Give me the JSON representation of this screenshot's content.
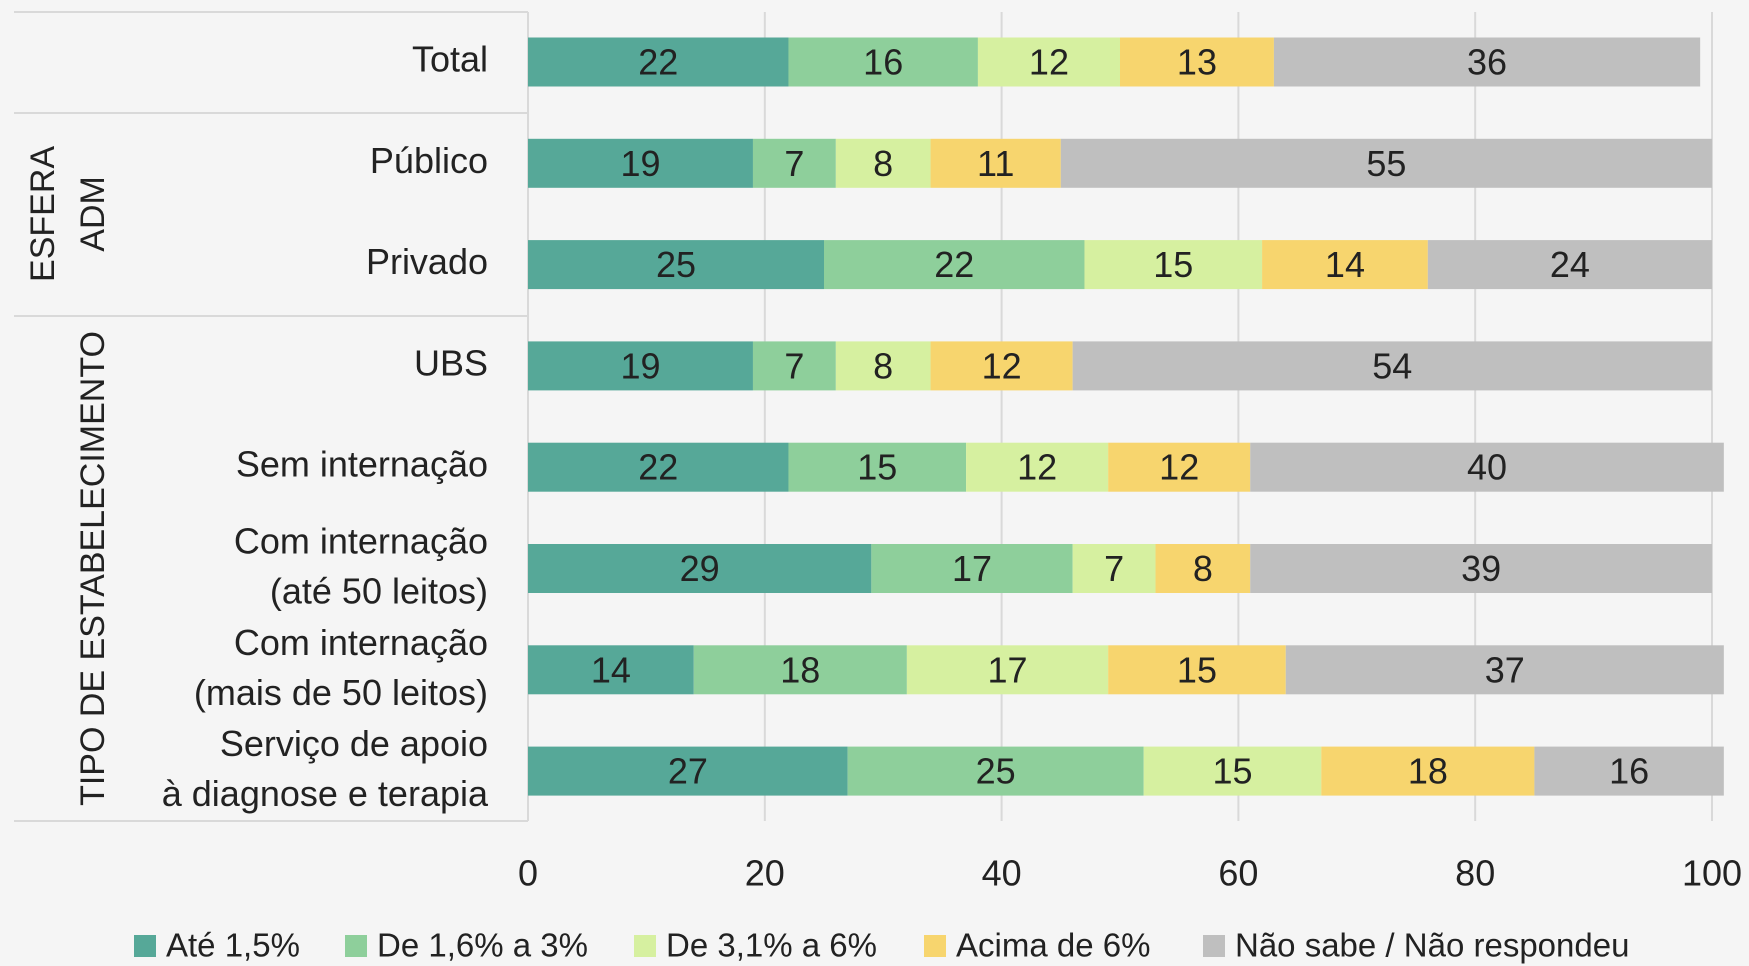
{
  "chart_data": {
    "type": "stacked_barh",
    "categories": [
      "Total",
      "Público",
      "Privado",
      "UBS",
      "Sem internação",
      "Com internação\n(até 50 leitos)",
      "Com internação\n(mais de 50 leitos)",
      "Serviço de apoio\nà diagnose e terapia"
    ],
    "groups": [
      {
        "label": "ESFERA\nADM",
        "rows": [
          1,
          2
        ]
      },
      {
        "label": "TIPO DE ESTABELECIMENTO",
        "rows": [
          3,
          7
        ]
      }
    ],
    "series": [
      {
        "name": "Até 1,5%",
        "color": "#56a898",
        "values": [
          22,
          19,
          25,
          19,
          22,
          29,
          14,
          27
        ]
      },
      {
        "name": "De 1,6% a 3%",
        "color": "#8ecf9b",
        "values": [
          16,
          7,
          22,
          7,
          15,
          17,
          18,
          25
        ]
      },
      {
        "name": "De 3,1% a 6%",
        "color": "#d6f0a0",
        "values": [
          12,
          8,
          15,
          8,
          12,
          7,
          17,
          15
        ]
      },
      {
        "name": "Acima de 6%",
        "color": "#f7d56e",
        "values": [
          13,
          11,
          14,
          12,
          12,
          8,
          15,
          18
        ]
      },
      {
        "name": "Não sabe / Não respondeu",
        "color": "#bfbfbf",
        "values": [
          36,
          55,
          24,
          54,
          40,
          39,
          37,
          16
        ]
      }
    ],
    "xlim": [
      0,
      100
    ],
    "xticks": [
      0,
      20,
      40,
      60,
      80,
      100
    ],
    "grid": true,
    "legend": "bottom"
  }
}
